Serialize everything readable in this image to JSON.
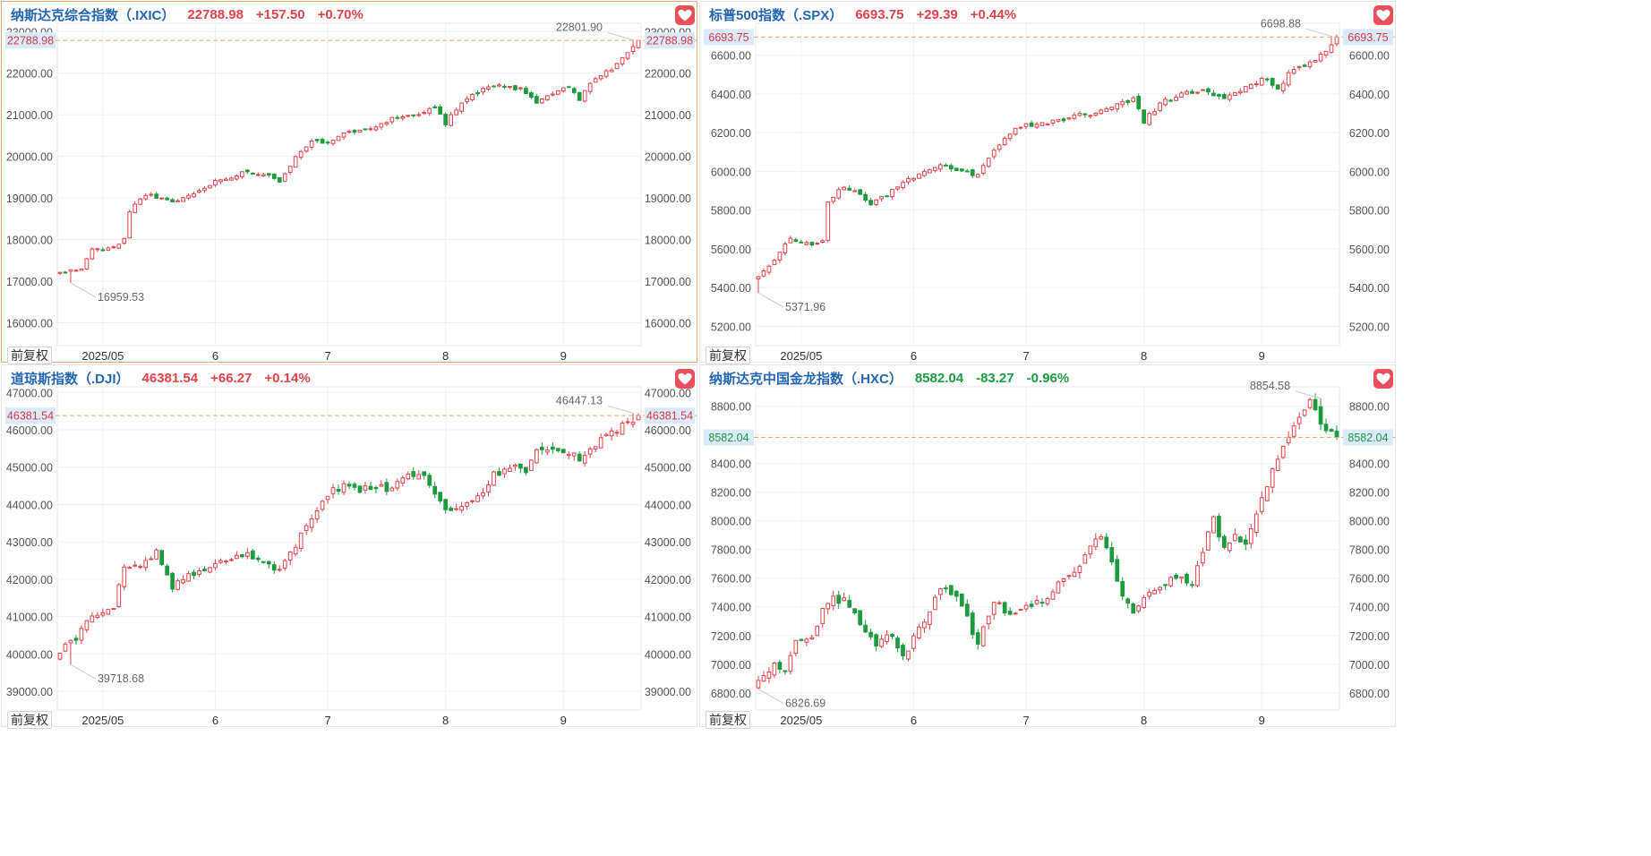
{
  "colors": {
    "up": "#e0434a",
    "down": "#1c9b3e",
    "price_line": "#e8a77a",
    "grid": "#efefef",
    "axis_text": "#555555",
    "name": "#2366b3"
  },
  "icons": {
    "favorite": "heart-icon"
  },
  "panels": [
    {
      "name": "纳斯达克综合指数（.IXIC）",
      "price": "22788.98",
      "change": "+157.50",
      "pct": "+0.70%",
      "trend": "up",
      "restore_label": "前复权",
      "price_tag": "22788.98",
      "high_label": "22801.90",
      "low_label": "16959.53",
      "chart_data": {
        "type": "candlestick",
        "ylim": [
          15450,
          23200
        ],
        "yticks": [
          16000,
          17000,
          18000,
          19000,
          20000,
          21000,
          22000,
          23000
        ],
        "ytick_labels": [
          "16000.00",
          "17000.00",
          "18000.00",
          "19000.00",
          "20000.00",
          "21000.00",
          "22000.00",
          "23000.00"
        ],
        "xticks": [
          {
            "label": "2025/05",
            "index": 8
          },
          {
            "label": "6",
            "index": 29
          },
          {
            "label": "7",
            "index": 50
          },
          {
            "label": "8",
            "index": 72
          },
          {
            "label": "9",
            "index": 94
          }
        ],
        "last": 22788.98,
        "high": 22801.9,
        "low": 16959.53,
        "high_index": 107,
        "low_index": 2,
        "series": [
          {
            "name": "IXIC",
            "waypoints": [
              [
                0,
                17200
              ],
              [
                4,
                17300
              ],
              [
                6,
                17750
              ],
              [
                10,
                17800
              ],
              [
                12,
                18000
              ],
              [
                13,
                18700
              ],
              [
                16,
                19100
              ],
              [
                18,
                19000
              ],
              [
                21,
                18900
              ],
              [
                25,
                19100
              ],
              [
                29,
                19400
              ],
              [
                34,
                19600
              ],
              [
                38,
                19600
              ],
              [
                41,
                19400
              ],
              [
                44,
                20000
              ],
              [
                47,
                20400
              ],
              [
                50,
                20300
              ],
              [
                54,
                20600
              ],
              [
                58,
                20700
              ],
              [
                62,
                20900
              ],
              [
                66,
                21000
              ],
              [
                70,
                21200
              ],
              [
                72,
                20800
              ],
              [
                75,
                21300
              ],
              [
                79,
                21600
              ],
              [
                83,
                21700
              ],
              [
                86,
                21600
              ],
              [
                89,
                21300
              ],
              [
                92,
                21500
              ],
              [
                95,
                21700
              ],
              [
                97,
                21300
              ],
              [
                99,
                21800
              ],
              [
                103,
                22100
              ],
              [
                106,
                22500
              ],
              [
                108,
                22789
              ]
            ],
            "seed": 11,
            "vol": 0.0055
          }
        ]
      }
    },
    {
      "name": "标普500指数（.SPX）",
      "price": "6693.75",
      "change": "+29.39",
      "pct": "+0.44%",
      "trend": "up",
      "restore_label": "前复权",
      "price_tag": "6693.75",
      "high_label": "6698.88",
      "low_label": "5371.96",
      "chart_data": {
        "type": "candlestick",
        "ylim": [
          5100,
          6765
        ],
        "yticks": [
          5200,
          5400,
          5600,
          5800,
          6000,
          6200,
          6400,
          6600
        ],
        "ytick_labels": [
          "5200.00",
          "5400.00",
          "5600.00",
          "5800.00",
          "6000.00",
          "6200.00",
          "6400.00",
          "6600.00"
        ],
        "xticks": [
          {
            "label": "2025/05",
            "index": 8
          },
          {
            "label": "6",
            "index": 29
          },
          {
            "label": "7",
            "index": 50
          },
          {
            "label": "8",
            "index": 72
          },
          {
            "label": "9",
            "index": 94
          }
        ],
        "last": 6693.75,
        "high": 6698.88,
        "low": 5371.96,
        "high_index": 107,
        "low_index": 0,
        "series": [
          {
            "name": "SPX",
            "waypoints": [
              [
                0,
                5450
              ],
              [
                3,
                5550
              ],
              [
                6,
                5650
              ],
              [
                10,
                5620
              ],
              [
                12,
                5650
              ],
              [
                13,
                5850
              ],
              [
                16,
                5920
              ],
              [
                18,
                5900
              ],
              [
                21,
                5830
              ],
              [
                25,
                5900
              ],
              [
                29,
                5970
              ],
              [
                34,
                6030
              ],
              [
                38,
                6000
              ],
              [
                41,
                5980
              ],
              [
                44,
                6100
              ],
              [
                47,
                6200
              ],
              [
                50,
                6240
              ],
              [
                54,
                6250
              ],
              [
                58,
                6280
              ],
              [
                62,
                6300
              ],
              [
                66,
                6330
              ],
              [
                70,
                6380
              ],
              [
                72,
                6260
              ],
              [
                75,
                6350
              ],
              [
                79,
                6400
              ],
              [
                83,
                6420
              ],
              [
                86,
                6380
              ],
              [
                89,
                6400
              ],
              [
                92,
                6450
              ],
              [
                95,
                6480
              ],
              [
                97,
                6420
              ],
              [
                99,
                6500
              ],
              [
                103,
                6560
              ],
              [
                106,
                6620
              ],
              [
                108,
                6694
              ]
            ],
            "seed": 23,
            "vol": 0.0045
          }
        ]
      }
    },
    {
      "name": "道琼斯指数（.DJI）",
      "price": "46381.54",
      "change": "+66.27",
      "pct": "+0.14%",
      "trend": "up",
      "restore_label": "前复权",
      "price_tag": "46381.54",
      "high_label": "46447.13",
      "low_label": "39718.68",
      "chart_data": {
        "type": "candlestick",
        "ylim": [
          38500,
          47150
        ],
        "yticks": [
          39000,
          40000,
          41000,
          42000,
          43000,
          44000,
          45000,
          46000,
          47000
        ],
        "ytick_labels": [
          "39000.00",
          "40000.00",
          "41000.00",
          "42000.00",
          "43000.00",
          "44000.00",
          "45000.00",
          "46000.00",
          "47000.00"
        ],
        "xticks": [
          {
            "label": "2025/05",
            "index": 8
          },
          {
            "label": "6",
            "index": 29
          },
          {
            "label": "7",
            "index": 50
          },
          {
            "label": "8",
            "index": 72
          },
          {
            "label": "9",
            "index": 94
          }
        ],
        "last": 46381.54,
        "high": 46447.13,
        "low": 39718.68,
        "high_index": 107,
        "low_index": 2,
        "series": [
          {
            "name": "DJI",
            "waypoints": [
              [
                0,
                40100
              ],
              [
                3,
                40400
              ],
              [
                5,
                40900
              ],
              [
                8,
                41100
              ],
              [
                10,
                41300
              ],
              [
                12,
                42300
              ],
              [
                15,
                42400
              ],
              [
                18,
                42700
              ],
              [
                21,
                41800
              ],
              [
                24,
                42100
              ],
              [
                27,
                42300
              ],
              [
                31,
                42500
              ],
              [
                35,
                42700
              ],
              [
                38,
                42400
              ],
              [
                41,
                42200
              ],
              [
                44,
                42900
              ],
              [
                47,
                43700
              ],
              [
                50,
                44300
              ],
              [
                53,
                44500
              ],
              [
                56,
                44400
              ],
              [
                59,
                44500
              ],
              [
                62,
                44400
              ],
              [
                65,
                44800
              ],
              [
                68,
                44700
              ],
              [
                70,
                44300
              ],
              [
                72,
                43800
              ],
              [
                75,
                43900
              ],
              [
                78,
                44200
              ],
              [
                81,
                44800
              ],
              [
                84,
                45000
              ],
              [
                87,
                44900
              ],
              [
                89,
                45400
              ],
              [
                92,
                45500
              ],
              [
                95,
                45400
              ],
              [
                97,
                45200
              ],
              [
                100,
                45600
              ],
              [
                103,
                45900
              ],
              [
                106,
                46200
              ],
              [
                108,
                46382
              ]
            ],
            "seed": 37,
            "vol": 0.005
          }
        ]
      }
    },
    {
      "name": "纳斯达克中国金龙指数（.HXC）",
      "price": "8582.04",
      "change": "-83.27",
      "pct": "-0.96%",
      "trend": "down",
      "restore_label": "前复权",
      "price_tag": "8582.04",
      "high_label": "8854.58",
      "low_label": "6826.69",
      "chart_data": {
        "type": "candlestick",
        "ylim": [
          6680,
          8935
        ],
        "yticks": [
          6800,
          7000,
          7200,
          7400,
          7600,
          7800,
          8000,
          8200,
          8400,
          8600,
          8800
        ],
        "ytick_labels": [
          "6800.00",
          "7000.00",
          "7200.00",
          "7400.00",
          "7600.00",
          "7800.00",
          "8000.00",
          "8200.00",
          "8400.00",
          "",
          "8800.00"
        ],
        "xticks": [
          {
            "label": "2025/05",
            "index": 8
          },
          {
            "label": "6",
            "index": 29
          },
          {
            "label": "7",
            "index": 50
          },
          {
            "label": "8",
            "index": 72
          },
          {
            "label": "9",
            "index": 94
          }
        ],
        "last": 8582.04,
        "high": 8854.58,
        "low": 6826.69,
        "high_index": 105,
        "low_index": 0,
        "series": [
          {
            "name": "HXC",
            "waypoints": [
              [
                0,
                6900
              ],
              [
                3,
                7000
              ],
              [
                5,
                6950
              ],
              [
                7,
                7150
              ],
              [
                10,
                7200
              ],
              [
                13,
                7450
              ],
              [
                16,
                7450
              ],
              [
                19,
                7300
              ],
              [
                22,
                7150
              ],
              [
                25,
                7200
              ],
              [
                27,
                7050
              ],
              [
                30,
                7250
              ],
              [
                33,
                7450
              ],
              [
                35,
                7550
              ],
              [
                38,
                7400
              ],
              [
                41,
                7150
              ],
              [
                44,
                7450
              ],
              [
                47,
                7350
              ],
              [
                50,
                7400
              ],
              [
                53,
                7450
              ],
              [
                56,
                7550
              ],
              [
                59,
                7650
              ],
              [
                62,
                7800
              ],
              [
                64,
                7900
              ],
              [
                66,
                7700
              ],
              [
                68,
                7450
              ],
              [
                70,
                7350
              ],
              [
                72,
                7450
              ],
              [
                75,
                7550
              ],
              [
                78,
                7600
              ],
              [
                81,
                7550
              ],
              [
                83,
                7800
              ],
              [
                85,
                8000
              ],
              [
                87,
                7800
              ],
              [
                89,
                7900
              ],
              [
                91,
                7850
              ],
              [
                93,
                8050
              ],
              [
                95,
                8250
              ],
              [
                97,
                8450
              ],
              [
                99,
                8600
              ],
              [
                101,
                8700
              ],
              [
                103,
                8854
              ],
              [
                105,
                8680
              ],
              [
                107,
                8620
              ],
              [
                108,
                8582
              ]
            ],
            "seed": 53,
            "vol": 0.009
          }
        ]
      }
    }
  ]
}
